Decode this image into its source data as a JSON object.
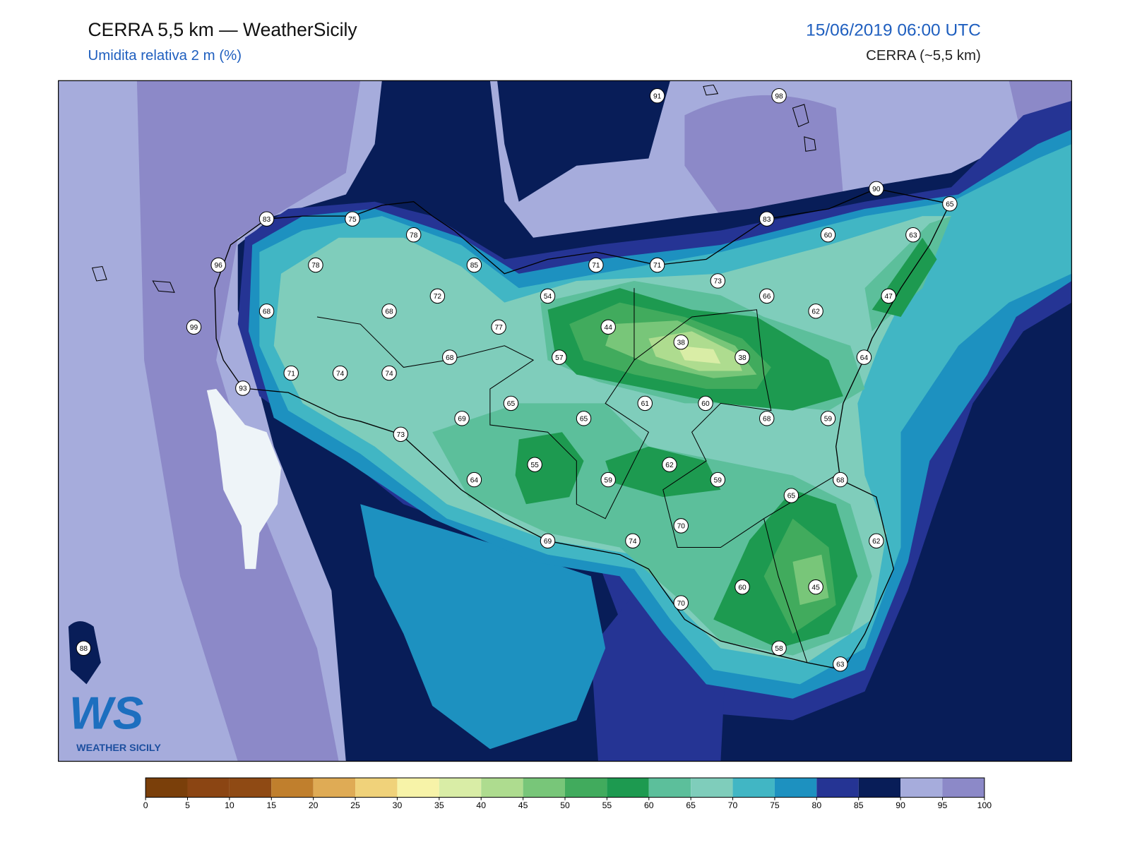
{
  "header": {
    "title": "CERRA 5,5 km — WeatherSicily",
    "subtitle": "Umidita relativa 2 m (%)",
    "datetime": "15/06/2019 06:00 UTC",
    "model": "CERRA (~5,5 km)"
  },
  "logo": {
    "mark": "WS",
    "name": "WEATHER SICILY"
  },
  "stations": [
    91,
    98,
    90,
    65,
    83,
    75,
    78,
    83,
    60,
    63,
    96,
    78,
    85,
    71,
    71,
    73,
    72,
    54,
    66,
    47,
    68,
    68,
    62,
    99,
    77,
    44,
    38,
    57,
    68,
    38,
    64,
    71,
    74,
    74,
    93,
    61,
    60,
    65,
    69,
    65,
    68,
    59,
    73,
    55,
    62,
    64,
    59,
    59,
    68,
    65,
    70,
    69,
    74,
    62,
    60,
    45,
    70,
    58,
    63,
    88
  ],
  "colorbar": {
    "ticks": [
      0,
      5,
      10,
      15,
      20,
      25,
      30,
      35,
      40,
      45,
      50,
      55,
      60,
      65,
      70,
      75,
      80,
      85,
      90,
      95,
      100
    ],
    "colors": [
      "#7a3f0a",
      "#8b4513",
      "#8f4a14",
      "#c07f2d",
      "#dfab55",
      "#f0d27a",
      "#f7f3a8",
      "#d9eda6",
      "#aedc8f",
      "#78c679",
      "#41ab5d",
      "#1d9a50",
      "#5cbf9b",
      "#7fcdbb",
      "#41b6c4",
      "#1d91c0",
      "#253494",
      "#081d58",
      "#a6acdc",
      "#8c89c8"
    ]
  }
}
